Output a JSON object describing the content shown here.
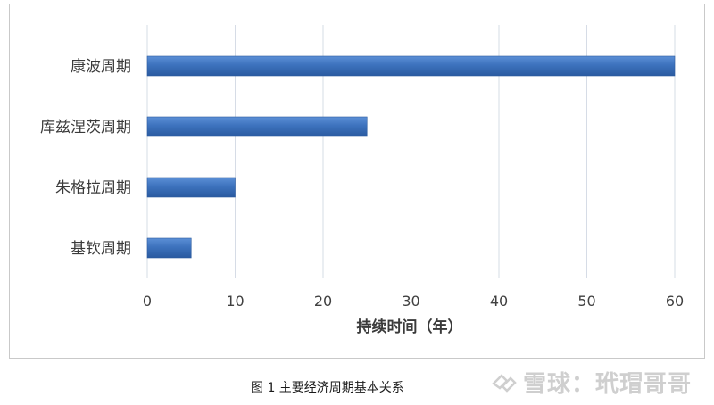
{
  "chart_data": {
    "type": "bar",
    "orientation": "horizontal",
    "categories": [
      "康波周期",
      "库兹涅茨周期",
      "朱格拉周期",
      "基钦周期"
    ],
    "values": [
      60,
      25,
      10,
      5
    ],
    "xlabel": "持续时间（年）",
    "ylabel": "",
    "xlim": [
      0,
      60
    ],
    "xticks": [
      "0",
      "10",
      "20",
      "30",
      "40",
      "50",
      "60"
    ],
    "grid": "vertical",
    "bar_color": "#3a6fb8"
  },
  "caption": "图 1 主要经济周期基本关系",
  "watermark": {
    "logo_icon": "snowball-logo-icon",
    "text": "雪球：玳瑁哥哥"
  }
}
